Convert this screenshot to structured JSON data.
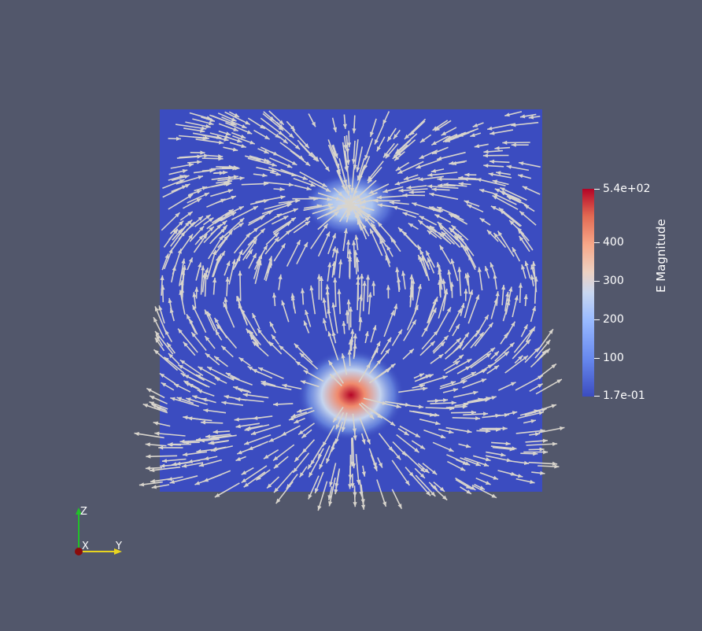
{
  "colors": {
    "background": "#52576b",
    "field_low": "#3b4cc0",
    "field_high": "#b40426",
    "arrow": "#d8d4cc"
  },
  "colorbar": {
    "title": "E Magnitude",
    "tick_labels": [
      "5.4e+02",
      "400",
      "300",
      "200",
      "100",
      "1.7e-01"
    ],
    "tick_values": [
      540,
      400,
      300,
      200,
      100,
      0.17
    ],
    "range": [
      0.17,
      540
    ]
  },
  "orientation_axes": {
    "z_label": "Z",
    "x_label": "X",
    "y_label": "Y"
  },
  "scene": {
    "field_name": "E",
    "glyph_type": "arrow-icon"
  }
}
